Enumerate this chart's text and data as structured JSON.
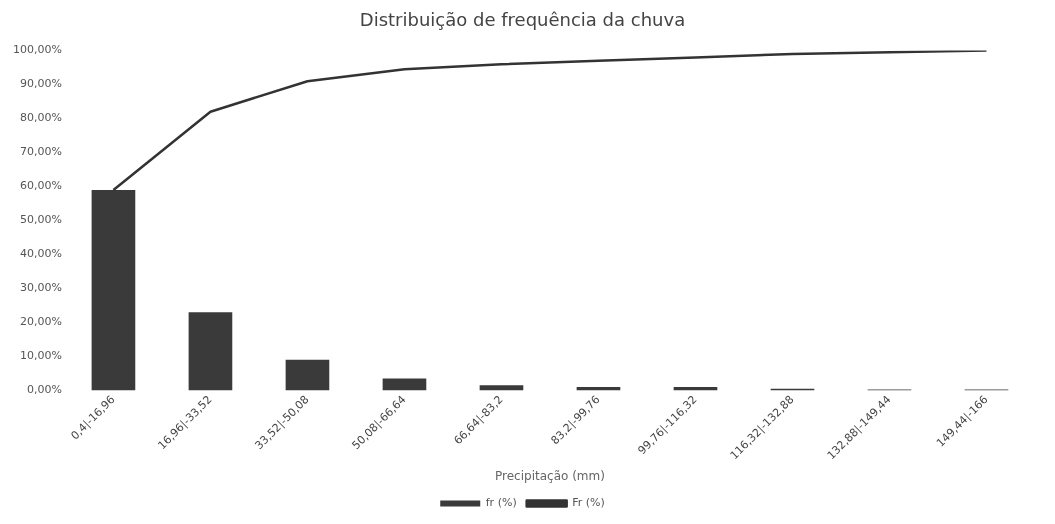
{
  "chart_data": {
    "type": "bar",
    "title": "Distribuição de frequência da chuva",
    "xlabel": "Precipitação (mm)",
    "categories": [
      "0,4|-16,96",
      "16,96|-33,52",
      "33,52|-50,08",
      "50,08|-66,64",
      "66,64|-83,2",
      "83,2|-99,76",
      "99,76|-116,32",
      "116,32|-132,88",
      "132,88|-149,44",
      "149,44|-166"
    ],
    "series": [
      {
        "name": "fr (%)",
        "color": "#3a3a3a",
        "values": [
          59,
          23,
          9,
          3.5,
          1.5,
          1,
          1,
          0.5,
          0.3,
          0.3
        ]
      },
      {
        "name": "Fr (%)",
        "type": "line",
        "color": "#333333",
        "values": [
          59,
          82,
          91,
          94.5,
          96,
          97,
          98,
          99,
          99.5,
          100
        ]
      }
    ],
    "ylim": [
      0,
      100
    ],
    "yticks": [
      {
        "value": 0,
        "label": "0,00%"
      },
      {
        "value": 10,
        "label": "10,00%"
      },
      {
        "value": 20,
        "label": "20,00%"
      },
      {
        "value": 30,
        "label": "30,00%"
      },
      {
        "value": 40,
        "label": "40,00%"
      },
      {
        "value": 50,
        "label": "50,00%"
      },
      {
        "value": 60,
        "label": "60,00%"
      },
      {
        "value": 70,
        "label": "70,00%"
      },
      {
        "value": 80,
        "label": "80,00%"
      },
      {
        "value": 90,
        "label": "90,00%"
      },
      {
        "value": 100,
        "label": "100,00%"
      }
    ],
    "grid": false,
    "legend": "bottom",
    "marker": "none"
  }
}
